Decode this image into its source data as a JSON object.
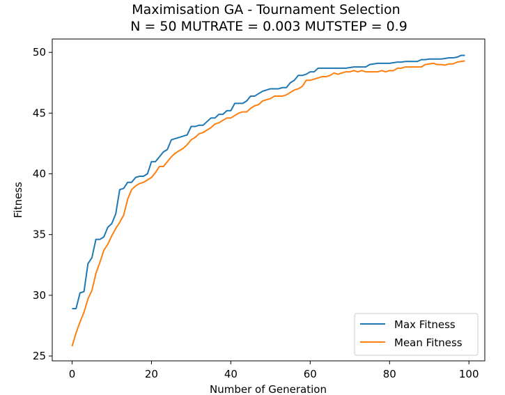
{
  "chart_data": {
    "type": "line",
    "title": "Maximisation GA - Tournament Selection",
    "subtitle": "N = 50 MUTRATE = 0.003 MUTSTEP = 0.9",
    "xlabel": "Number of Generation",
    "ylabel": "Fitness",
    "xlim": [
      -5,
      104
    ],
    "ylim": [
      24.6,
      51.1
    ],
    "xticks": [
      0,
      20,
      40,
      60,
      80,
      100
    ],
    "yticks": [
      25,
      30,
      35,
      40,
      45,
      50
    ],
    "grid": false,
    "legend_position": "lower-right",
    "x_start": 0,
    "x_end": 99,
    "series": [
      {
        "name": "Max Fitness",
        "color": "#1f77b4",
        "values": [
          28.9,
          28.9,
          30.2,
          30.3,
          32.6,
          33.1,
          34.6,
          34.6,
          34.8,
          35.6,
          35.9,
          36.7,
          38.7,
          38.8,
          39.3,
          39.3,
          39.7,
          39.8,
          39.8,
          40.0,
          41.0,
          41.0,
          41.4,
          41.8,
          42.0,
          42.8,
          42.9,
          43.0,
          43.1,
          43.2,
          43.9,
          43.9,
          44.0,
          44.0,
          44.3,
          44.6,
          44.6,
          44.9,
          44.9,
          45.2,
          45.2,
          45.8,
          45.8,
          45.8,
          46.0,
          46.4,
          46.4,
          46.6,
          46.8,
          46.9,
          47.0,
          47.0,
          47.0,
          47.1,
          47.1,
          47.5,
          47.7,
          48.1,
          48.1,
          48.2,
          48.4,
          48.4,
          48.7,
          48.7,
          48.7,
          48.7,
          48.7,
          48.7,
          48.7,
          48.7,
          48.75,
          48.8,
          48.8,
          48.8,
          48.8,
          49.0,
          49.05,
          49.1,
          49.1,
          49.1,
          49.1,
          49.15,
          49.2,
          49.2,
          49.25,
          49.25,
          49.25,
          49.25,
          49.4,
          49.4,
          49.45,
          49.45,
          49.45,
          49.45,
          49.5,
          49.55,
          49.55,
          49.6,
          49.75,
          49.75
        ]
      },
      {
        "name": "Mean Fitness",
        "color": "#ff7f0e",
        "values": [
          25.8,
          26.9,
          27.8,
          28.6,
          29.7,
          30.4,
          31.8,
          32.7,
          33.7,
          34.2,
          34.9,
          35.5,
          36.0,
          36.6,
          37.9,
          38.7,
          39.0,
          39.2,
          39.3,
          39.5,
          39.7,
          40.1,
          40.6,
          40.6,
          41.0,
          41.4,
          41.7,
          41.9,
          42.1,
          42.4,
          42.8,
          43.0,
          43.3,
          43.4,
          43.6,
          43.8,
          44.1,
          44.2,
          44.4,
          44.6,
          44.6,
          44.8,
          45.0,
          45.1,
          45.1,
          45.4,
          45.6,
          45.7,
          46.0,
          46.1,
          46.2,
          46.4,
          46.4,
          46.4,
          46.5,
          46.7,
          46.9,
          47.0,
          47.2,
          47.7,
          47.7,
          47.8,
          47.9,
          48.0,
          48.0,
          48.1,
          48.3,
          48.2,
          48.3,
          48.4,
          48.4,
          48.5,
          48.4,
          48.5,
          48.4,
          48.4,
          48.4,
          48.4,
          48.5,
          48.4,
          48.5,
          48.5,
          48.7,
          48.7,
          48.8,
          48.8,
          48.8,
          48.8,
          48.8,
          49.0,
          49.05,
          49.1,
          49.0,
          49.0,
          48.95,
          49.05,
          49.05,
          49.2,
          49.25,
          49.3
        ]
      }
    ]
  }
}
